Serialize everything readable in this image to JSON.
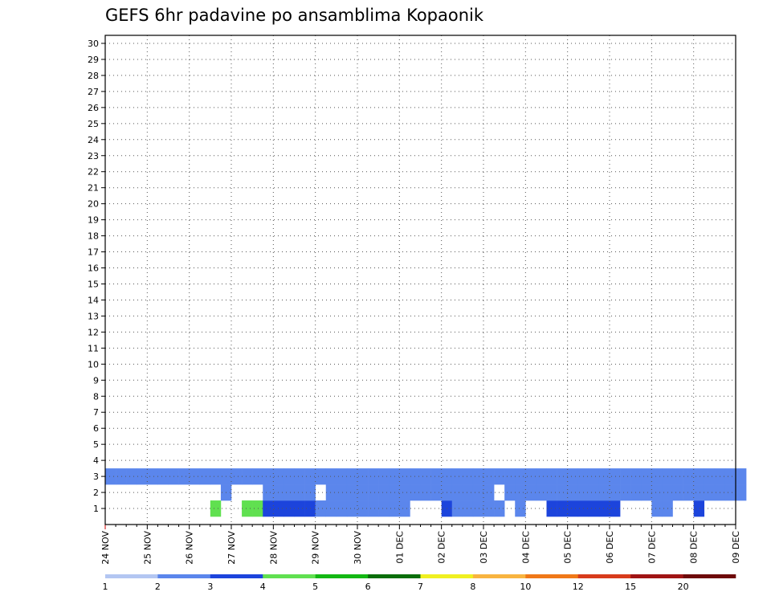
{
  "chart_data": {
    "type": "heatmap",
    "title": "GEFS 6hr padavine po ansamblima Kopaonik",
    "xlabel": "",
    "ylabel": "",
    "x_ticks": [
      "24 NOV",
      "25 NOV",
      "26 NOV",
      "27 NOV",
      "28 NOV",
      "29 NOV",
      "30 NOV",
      "01 DEC",
      "02 DEC",
      "03 DEC",
      "04 DEC",
      "05 DEC",
      "06 DEC",
      "07 DEC",
      "08 DEC",
      "09 DEC"
    ],
    "y_ticks": [
      1,
      2,
      3,
      4,
      5,
      6,
      7,
      8,
      9,
      10,
      11,
      12,
      13,
      14,
      15,
      16,
      17,
      18,
      19,
      20,
      21,
      22,
      23,
      24,
      25,
      26,
      27,
      28,
      29,
      30
    ],
    "time_step_hours": 6,
    "grid": true,
    "colorbar": {
      "levels": [
        1,
        2,
        3,
        4,
        5,
        6,
        7,
        8,
        10,
        12,
        15,
        20
      ],
      "colors": [
        "#b3c6f2",
        "#5b86ec",
        "#1c44dc",
        "#60e050",
        "#13b813",
        "#0a6e0a",
        "#f0f020",
        "#f8b440",
        "#f07818",
        "#d83c1c",
        "#a01414",
        "#6e0a0a"
      ]
    },
    "values": [
      [
        0,
        10,
        3
      ],
      [
        0,
        13,
        3
      ],
      [
        0,
        14,
        3
      ],
      [
        0,
        15,
        2
      ],
      [
        0,
        16,
        2
      ],
      [
        0,
        17,
        2
      ],
      [
        0,
        18,
        2
      ],
      [
        0,
        19,
        2
      ],
      [
        0,
        20,
        1
      ],
      [
        0,
        21,
        1
      ],
      [
        0,
        22,
        1
      ],
      [
        0,
        23,
        1
      ],
      [
        0,
        24,
        1
      ],
      [
        0,
        25,
        1
      ],
      [
        0,
        26,
        1
      ],
      [
        0,
        27,
        1
      ],
      [
        0,
        28,
        1
      ],
      [
        0,
        32,
        2
      ],
      [
        0,
        33,
        1
      ],
      [
        0,
        34,
        1
      ],
      [
        0,
        35,
        1
      ],
      [
        0,
        36,
        1
      ],
      [
        0,
        37,
        1
      ],
      [
        0,
        39,
        1
      ],
      [
        0,
        42,
        2
      ],
      [
        0,
        43,
        2
      ],
      [
        0,
        44,
        2
      ],
      [
        0,
        45,
        2
      ],
      [
        0,
        46,
        2
      ],
      [
        0,
        47,
        2
      ],
      [
        0,
        48,
        2
      ],
      [
        0,
        52,
        1
      ],
      [
        0,
        53,
        1
      ],
      [
        0,
        56,
        2
      ],
      [
        1,
        11,
        1
      ],
      [
        1,
        15,
        1
      ],
      [
        1,
        16,
        1
      ],
      [
        1,
        17,
        1
      ],
      [
        1,
        18,
        1
      ],
      [
        1,
        19,
        1
      ],
      [
        1,
        21,
        1
      ],
      [
        1,
        22,
        1
      ],
      [
        1,
        23,
        1
      ],
      [
        1,
        24,
        1
      ],
      [
        1,
        25,
        1
      ],
      [
        1,
        26,
        1
      ],
      [
        1,
        27,
        1
      ],
      [
        1,
        28,
        1
      ],
      [
        1,
        29,
        1
      ],
      [
        1,
        30,
        1
      ],
      [
        1,
        31,
        1
      ],
      [
        1,
        32,
        1
      ],
      [
        1,
        33,
        1
      ],
      [
        1,
        34,
        1
      ],
      [
        1,
        35,
        1
      ],
      [
        1,
        36,
        1
      ],
      [
        1,
        38,
        1
      ],
      [
        1,
        39,
        1
      ],
      [
        1,
        40,
        1
      ],
      [
        1,
        41,
        1
      ],
      [
        1,
        42,
        1
      ],
      [
        1,
        43,
        1
      ],
      [
        1,
        44,
        1
      ],
      [
        1,
        45,
        1
      ],
      [
        1,
        46,
        1
      ],
      [
        1,
        47,
        1
      ],
      [
        1,
        48,
        1
      ],
      [
        1,
        49,
        1
      ],
      [
        1,
        50,
        1
      ],
      [
        1,
        51,
        1
      ],
      [
        1,
        52,
        1
      ],
      [
        1,
        53,
        1
      ],
      [
        1,
        54,
        1
      ],
      [
        1,
        55,
        1
      ],
      [
        1,
        56,
        1
      ],
      [
        1,
        57,
        1
      ],
      [
        1,
        58,
        1
      ],
      [
        1,
        59,
        1
      ],
      [
        1,
        60,
        1
      ],
      [
        2,
        0,
        1
      ],
      [
        2,
        1,
        1
      ],
      [
        2,
        2,
        1
      ],
      [
        2,
        3,
        1
      ],
      [
        2,
        4,
        1
      ],
      [
        2,
        5,
        1
      ],
      [
        2,
        6,
        1
      ],
      [
        2,
        7,
        1
      ],
      [
        2,
        8,
        1
      ],
      [
        2,
        9,
        1
      ],
      [
        2,
        10,
        1
      ],
      [
        2,
        11,
        1
      ],
      [
        2,
        12,
        1
      ],
      [
        2,
        13,
        1
      ],
      [
        2,
        14,
        1
      ],
      [
        2,
        15,
        1
      ],
      [
        2,
        16,
        1
      ],
      [
        2,
        17,
        1
      ],
      [
        2,
        18,
        1
      ],
      [
        2,
        19,
        1
      ],
      [
        2,
        20,
        1
      ],
      [
        2,
        21,
        1
      ],
      [
        2,
        22,
        1
      ],
      [
        2,
        23,
        1
      ],
      [
        2,
        24,
        1
      ],
      [
        2,
        25,
        1
      ],
      [
        2,
        26,
        1
      ],
      [
        2,
        27,
        1
      ],
      [
        2,
        28,
        1
      ],
      [
        2,
        29,
        1
      ],
      [
        2,
        30,
        1
      ],
      [
        2,
        31,
        1
      ],
      [
        2,
        32,
        1
      ],
      [
        2,
        33,
        1
      ],
      [
        2,
        34,
        1
      ],
      [
        2,
        35,
        1
      ],
      [
        2,
        36,
        1
      ],
      [
        2,
        37,
        1
      ],
      [
        2,
        38,
        1
      ],
      [
        2,
        39,
        1
      ],
      [
        2,
        40,
        1
      ],
      [
        2,
        41,
        1
      ],
      [
        2,
        42,
        1
      ],
      [
        2,
        43,
        1
      ],
      [
        2,
        44,
        1
      ],
      [
        2,
        45,
        1
      ],
      [
        2,
        46,
        1
      ],
      [
        2,
        47,
        1
      ],
      [
        2,
        48,
        1
      ],
      [
        2,
        49,
        1
      ],
      [
        2,
        50,
        1
      ],
      [
        2,
        51,
        1
      ],
      [
        2,
        52,
        1
      ],
      [
        2,
        53,
        1
      ],
      [
        2,
        54,
        1
      ],
      [
        2,
        55,
        1
      ],
      [
        2,
        56,
        1
      ],
      [
        2,
        57,
        1
      ],
      [
        2,
        58,
        1
      ],
      [
        2,
        59,
        1
      ],
      [
        2,
        60,
        1
      ]
    ]
  }
}
